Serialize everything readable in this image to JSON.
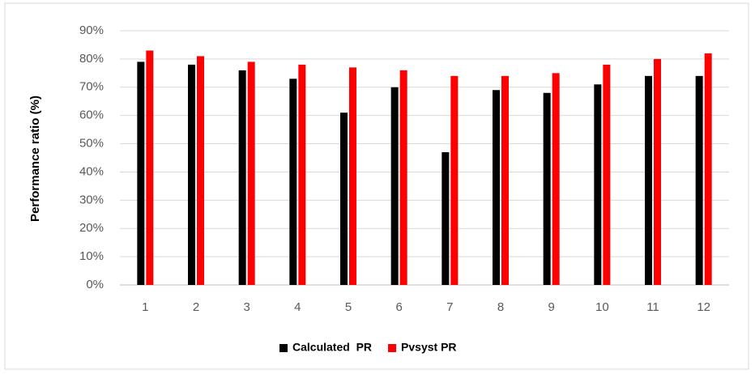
{
  "chart_data": {
    "type": "bar",
    "y_label": "Performance ratio (%)",
    "categories": [
      "1",
      "2",
      "3",
      "4",
      "5",
      "6",
      "7",
      "8",
      "9",
      "10",
      "11",
      "12"
    ],
    "series": [
      {
        "name": "Calculated  PR",
        "color": "#000000",
        "values": [
          79,
          78,
          76,
          73,
          61,
          70,
          47,
          69,
          68,
          71,
          74,
          74
        ]
      },
      {
        "name": "Pvsyst PR",
        "color": "#ff0000",
        "values": [
          83,
          81,
          79,
          78,
          77,
          76,
          74,
          74,
          75,
          78,
          80,
          82
        ]
      }
    ],
    "ylim": [
      0,
      90
    ],
    "yticks": [
      {
        "value": 0,
        "label": "0%"
      },
      {
        "value": 10,
        "label": "10%"
      },
      {
        "value": 20,
        "label": "20%"
      },
      {
        "value": 30,
        "label": "30%"
      },
      {
        "value": 40,
        "label": "40%"
      },
      {
        "value": 50,
        "label": "50%"
      },
      {
        "value": 60,
        "label": "60%"
      },
      {
        "value": 70,
        "label": "70%"
      },
      {
        "value": 80,
        "label": "80%"
      },
      {
        "value": 90,
        "label": "90%"
      }
    ],
    "grid": true,
    "legend": "bottom"
  }
}
